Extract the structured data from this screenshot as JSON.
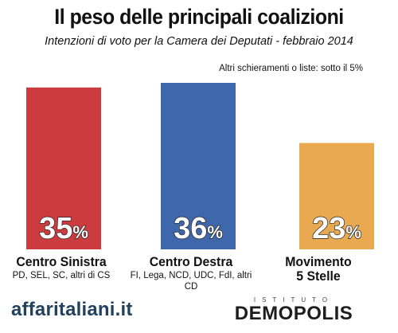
{
  "title": "Il peso delle principali coalizioni",
  "subtitle": "Intenzioni di voto per la Camera dei Deputati - febbraio 2014",
  "note": "Altri schieramenti o liste: sotto il 5%",
  "footer": {
    "left_logo": "affaritaliani.it",
    "right_logo_top": "ISTITUTO",
    "right_logo": "DEMOPOLIS"
  },
  "colors": {
    "bar_1": "#cc3c3f",
    "bar_2": "#3f68ac",
    "bar_3": "#e8a951"
  },
  "chart_data": {
    "type": "bar",
    "categories": [
      "Centro Sinistra",
      "Centro Destra",
      "Movimento 5 Stelle"
    ],
    "category_subtitles": [
      "PD, SEL, SC, altri di CS",
      "FI, Lega, NCD, UDC, FdI, altri CD",
      ""
    ],
    "values": [
      35,
      36,
      23
    ],
    "value_labels": [
      "35",
      "36",
      "23"
    ],
    "value_suffix": "%",
    "ylim": [
      0,
      36
    ],
    "xlabel": "",
    "ylabel": "",
    "grid": false,
    "legend": "none"
  }
}
